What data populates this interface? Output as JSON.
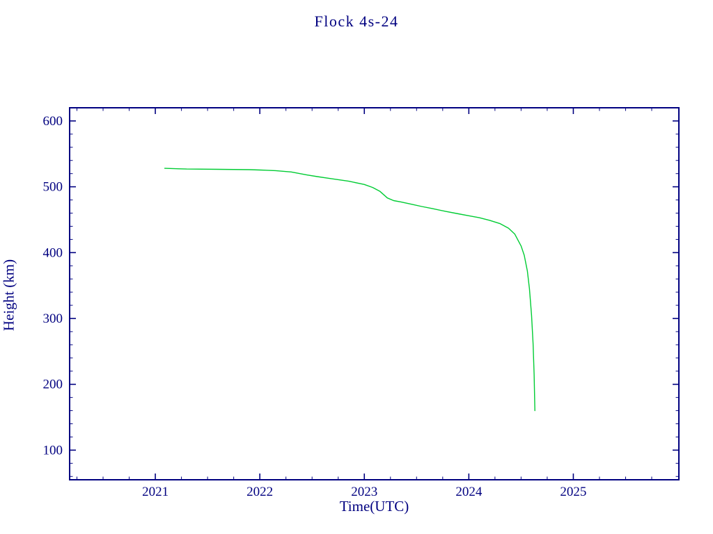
{
  "chart_data": {
    "type": "line",
    "title": "Flock 4s-24",
    "xlabel": "Time(UTC)",
    "ylabel": "Height (km)",
    "xlim": [
      2020.18,
      2026.01
    ],
    "ylim": [
      55,
      620
    ],
    "x_ticks": [
      2021,
      2022,
      2023,
      2024,
      2025
    ],
    "y_ticks": [
      100,
      200,
      300,
      400,
      500,
      600
    ],
    "x_minor_step": 0.25,
    "y_minor_step": 20,
    "grid": false,
    "legend": null,
    "axis_color": "#000080",
    "line_color": "#00cc33",
    "series": [
      {
        "name": "orbital-height",
        "points": [
          [
            2021.09,
            528
          ],
          [
            2021.3,
            527
          ],
          [
            2021.6,
            526.5
          ],
          [
            2021.9,
            526
          ],
          [
            2022.0,
            525.5
          ],
          [
            2022.15,
            524.5
          ],
          [
            2022.3,
            522.5
          ],
          [
            2022.45,
            518
          ],
          [
            2022.55,
            515.5
          ],
          [
            2022.7,
            512
          ],
          [
            2022.85,
            508.5
          ],
          [
            2023.0,
            503.5
          ],
          [
            2023.08,
            499
          ],
          [
            2023.15,
            493
          ],
          [
            2023.22,
            483
          ],
          [
            2023.28,
            479
          ],
          [
            2023.35,
            477
          ],
          [
            2023.45,
            473.5
          ],
          [
            2023.55,
            470
          ],
          [
            2023.65,
            467
          ],
          [
            2023.78,
            462.5
          ],
          [
            2023.9,
            459
          ],
          [
            2024.0,
            456
          ],
          [
            2024.1,
            453
          ],
          [
            2024.2,
            449
          ],
          [
            2024.3,
            444
          ],
          [
            2024.38,
            437
          ],
          [
            2024.44,
            428
          ],
          [
            2024.48,
            416
          ],
          [
            2024.5,
            410
          ],
          [
            2024.53,
            396
          ],
          [
            2024.56,
            372
          ],
          [
            2024.58,
            345
          ],
          [
            2024.6,
            305
          ],
          [
            2024.615,
            262
          ],
          [
            2024.625,
            215
          ],
          [
            2024.632,
            160
          ]
        ]
      }
    ]
  }
}
